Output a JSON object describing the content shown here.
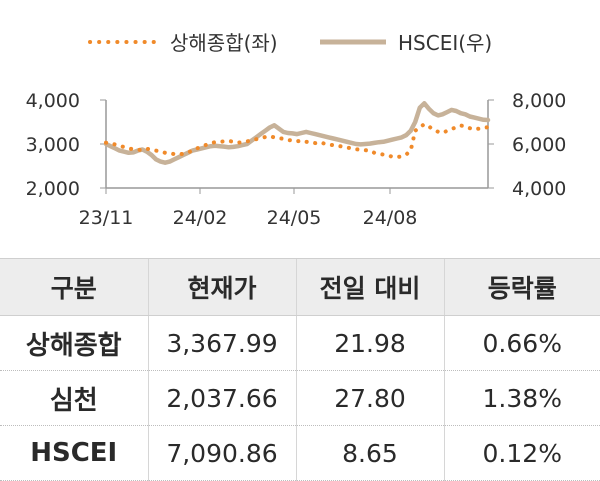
{
  "chart_data": {
    "type": "line",
    "legend": [
      {
        "name": "상해종합(좌)",
        "style": "dotted",
        "color": "#f08a2a"
      },
      {
        "name": "HSCEI(우)",
        "style": "solid",
        "color": "#c7b299"
      }
    ],
    "legend_placement": "top-center",
    "x_tick_labels": [
      "23/11",
      "24/02",
      "24/05",
      "24/08"
    ],
    "left_axis": {
      "ticks": [
        "4,000",
        "3,000",
        "2,000"
      ],
      "ylim": [
        2000,
        4000
      ]
    },
    "right_axis": {
      "ticks": [
        "8,000",
        "6,000",
        "4,000"
      ],
      "ylim": [
        4000,
        8000
      ]
    },
    "grid": false,
    "series": [
      {
        "name": "상해종합(좌)",
        "axis": "left",
        "values": [
          3030,
          3010,
          2990,
          2960,
          2930,
          2900,
          2880,
          2870,
          2860,
          2890,
          2870,
          2850,
          2830,
          2800,
          2790,
          2770,
          2760,
          2780,
          2800,
          2860,
          2900,
          2940,
          2980,
          3020,
          3040,
          3050,
          3060,
          3070,
          3050,
          3030,
          3040,
          3060,
          3080,
          3110,
          3130,
          3160,
          3180,
          3150,
          3130,
          3120,
          3090,
          3080,
          3060,
          3080,
          3050,
          3040,
          3020,
          3040,
          3010,
          2990,
          2970,
          2960,
          2940,
          2920,
          2900,
          2880,
          2870,
          2860,
          2850,
          2800,
          2780,
          2760,
          2740,
          2710,
          2700,
          2720,
          2760,
          2850,
          3300,
          3380,
          3450,
          3400,
          3320,
          3280,
          3250,
          3300,
          3340,
          3380,
          3420,
          3400,
          3360,
          3330,
          3350,
          3370,
          3380
        ]
      },
      {
        "name": "HSCEI(우)",
        "axis": "right",
        "values": [
          6000,
          5900,
          5800,
          5700,
          5650,
          5600,
          5620,
          5700,
          5750,
          5650,
          5500,
          5300,
          5200,
          5150,
          5200,
          5300,
          5400,
          5500,
          5600,
          5700,
          5750,
          5800,
          5850,
          5900,
          5920,
          5900,
          5880,
          5850,
          5870,
          5900,
          5950,
          6000,
          6150,
          6300,
          6450,
          6600,
          6750,
          6850,
          6700,
          6550,
          6500,
          6480,
          6450,
          6500,
          6550,
          6500,
          6450,
          6400,
          6350,
          6300,
          6250,
          6200,
          6150,
          6100,
          6050,
          6000,
          5980,
          6000,
          6020,
          6050,
          6080,
          6100,
          6150,
          6200,
          6250,
          6300,
          6400,
          6600,
          7000,
          7650,
          7850,
          7600,
          7400,
          7300,
          7350,
          7450,
          7550,
          7500,
          7400,
          7350,
          7250,
          7200,
          7150,
          7100,
          7090
        ]
      }
    ]
  },
  "table": {
    "headers": [
      "구분",
      "현재가",
      "전일 대비",
      "등락률"
    ],
    "rows": [
      [
        "상해종합",
        "3,367.99",
        "21.98",
        "0.66%"
      ],
      [
        "심천",
        "2,037.66",
        "27.80",
        "1.38%"
      ],
      [
        "HSCEI",
        "7,090.86",
        "8.65",
        "0.12%"
      ]
    ]
  }
}
